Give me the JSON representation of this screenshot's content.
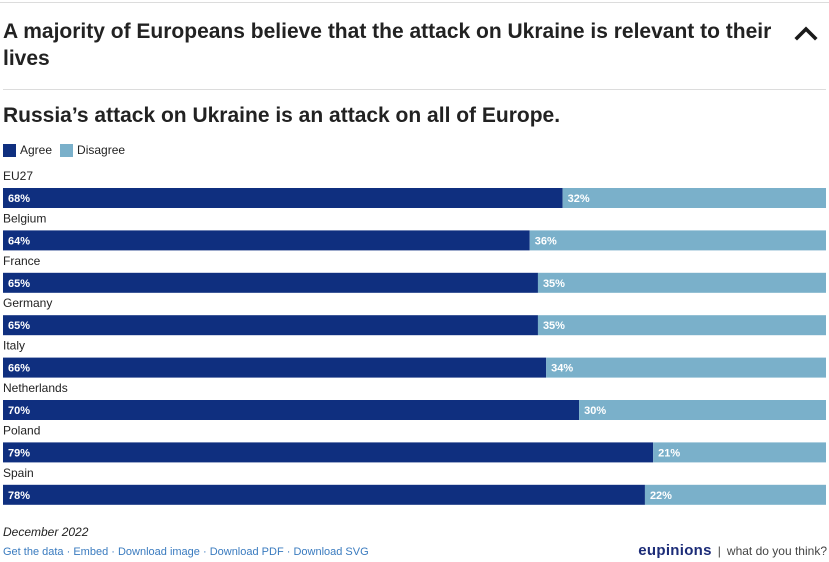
{
  "section": {
    "title": "A majority of Europeans believe that the attack on Ukraine is relevant to their lives"
  },
  "colors": {
    "agree": "#0f2f7f",
    "disagree": "#7ab0ca",
    "bar_text": "#ffffff"
  },
  "icons": {
    "collapse": "chevron-up-icon"
  },
  "chart_data": {
    "type": "bar",
    "orientation": "horizontal",
    "stacked": true,
    "title": "Russia’s attack on Ukraine is an attack on all of Europe.",
    "legend": {
      "placement": "top-left",
      "entries": [
        "Agree",
        "Disagree"
      ]
    },
    "categories": [
      "EU27",
      "Belgium",
      "France",
      "Germany",
      "Italy",
      "Netherlands",
      "Poland",
      "Spain"
    ],
    "series": [
      {
        "name": "Agree",
        "values": [
          68,
          64,
          65,
          65,
          66,
          70,
          79,
          78
        ]
      },
      {
        "name": "Disagree",
        "values": [
          32,
          36,
          35,
          35,
          34,
          30,
          21,
          22
        ]
      }
    ],
    "value_suffix": "%",
    "xlim": [
      0,
      100
    ],
    "grid": false
  },
  "footer": {
    "date": "December 2022",
    "links": [
      "Get the data",
      "Embed",
      "Download image",
      "Download PDF",
      "Download SVG"
    ],
    "brand": "eupinions",
    "tagline": "what do you think?"
  }
}
